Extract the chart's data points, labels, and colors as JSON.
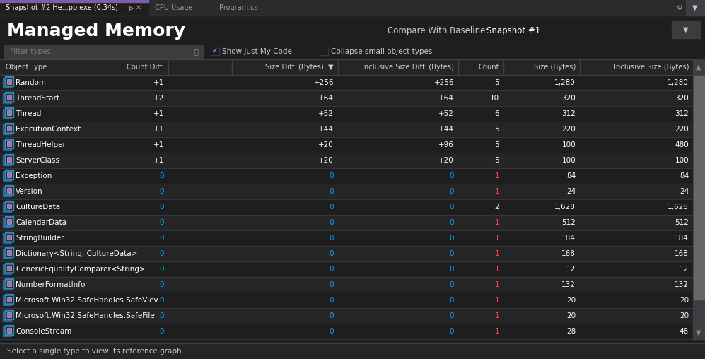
{
  "bg_color": "#1e1e1e",
  "tab_bar_color": "#2b2b2b",
  "tab_active_color": "#1e1e1e",
  "tab_inactive_color": "#2b2b2b",
  "tab_text_active": "#ffffff",
  "tab_text_inactive": "#9d9d9d",
  "tab_border_color": "#7b5ea7",
  "title_text": "Managed Memory",
  "title_color": "#ffffff",
  "compare_label": "Compare With Baseline:",
  "compare_value": "Snapshot #1",
  "filter_placeholder": "Filter types",
  "checkbox1_text": "Show Just My Code",
  "checkbox2_text": "Collapse small object types",
  "col_headers": [
    "Object Type",
    "Count Diff.",
    "Size Diff. (Bytes)  ▼",
    "Inclusive Size Diff. (Bytes)",
    "Count",
    "Size (Bytes)",
    "Inclusive Size (Bytes)"
  ],
  "col_header_color": "#cccccc",
  "col_header_bg": "#252526",
  "rows": [
    [
      "Random",
      "+1",
      "+256",
      "+256",
      "5",
      "1,280",
      "1,280"
    ],
    [
      "ThreadStart",
      "+2",
      "+64",
      "+64",
      "10",
      "320",
      "320"
    ],
    [
      "Thread",
      "+1",
      "+52",
      "+52",
      "6",
      "312",
      "312"
    ],
    [
      "ExecutionContext",
      "+1",
      "+44",
      "+44",
      "5",
      "220",
      "220"
    ],
    [
      "ThreadHelper",
      "+1",
      "+20",
      "+96",
      "5",
      "100",
      "480"
    ],
    [
      "ServerClass",
      "+1",
      "+20",
      "+20",
      "5",
      "100",
      "100"
    ],
    [
      "Exception",
      "0",
      "0",
      "0",
      "1",
      "84",
      "84"
    ],
    [
      "Version",
      "0",
      "0",
      "0",
      "1",
      "24",
      "24"
    ],
    [
      "CultureData",
      "0",
      "0",
      "0",
      "2",
      "1,628",
      "1,628"
    ],
    [
      "CalendarData",
      "0",
      "0",
      "0",
      "1",
      "512",
      "512"
    ],
    [
      "StringBuilder",
      "0",
      "0",
      "0",
      "1",
      "184",
      "184"
    ],
    [
      "Dictionary<String, CultureData>",
      "0",
      "0",
      "0",
      "1",
      "168",
      "168"
    ],
    [
      "GenericEqualityComparer<String>",
      "0",
      "0",
      "0",
      "1",
      "12",
      "12"
    ],
    [
      "NumberFormatInfo",
      "0",
      "0",
      "0",
      "1",
      "132",
      "132"
    ],
    [
      "Microsoft.Win32.SafeHandles.SafeViev",
      "0",
      "0",
      "0",
      "1",
      "20",
      "20"
    ],
    [
      "Microsoft.Win32.SafeHandles.SafeFile",
      "0",
      "0",
      "0",
      "1",
      "20",
      "20"
    ],
    [
      "ConsoleStream",
      "0",
      "0",
      "0",
      "1",
      "28",
      "48"
    ]
  ],
  "positive_color": "#ffffff",
  "zero_color": "#00aaff",
  "count_red_color": "#ff4444",
  "count_white_color": "#ffffff",
  "odd_row_bg": "#1e1e1e",
  "even_row_bg": "#252526",
  "grid_color": "#3f3f46",
  "status_text": "Select a single type to view its reference graph.",
  "status_bg": "#252526",
  "icon_color": "#c8a0d0",
  "scrollbar_bg": "#3e3e42",
  "scrollbar_thumb": "#686868"
}
